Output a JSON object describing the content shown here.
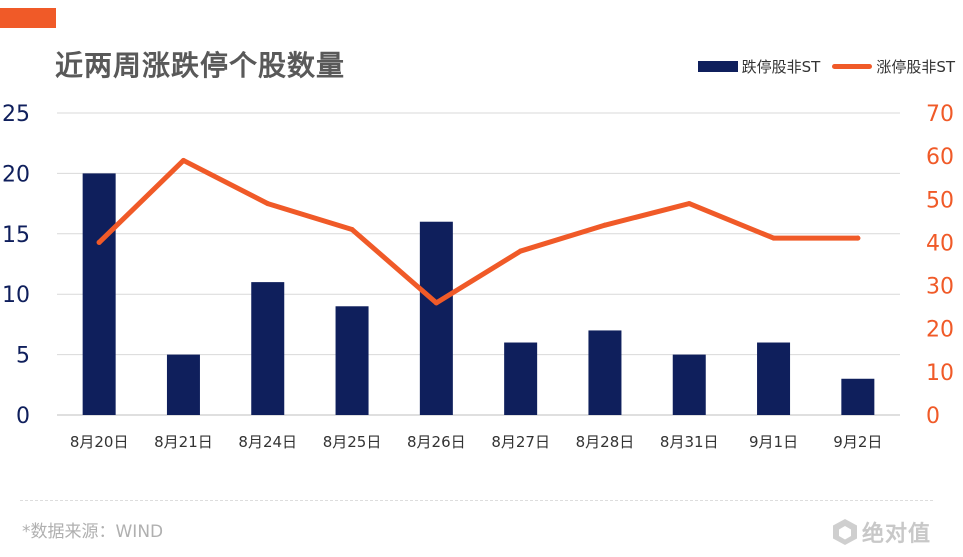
{
  "header": {
    "title": "近两周涨跌停个股数量"
  },
  "legend": {
    "bar_label": "跌停股非ST",
    "line_label": "涨停股非ST"
  },
  "footer": {
    "source": "*数据来源：WIND",
    "logo_text": "绝对值"
  },
  "colors": {
    "accent": "#f05a28",
    "bar": "#0f1f5c",
    "line": "#f05a28",
    "left_axis": "#0f1f5c",
    "right_axis": "#f05a28",
    "grid": "#d9d9d9"
  },
  "chart_data": {
    "type": "bar",
    "categories": [
      "8月20日",
      "8月21日",
      "8月24日",
      "8月25日",
      "8月26日",
      "8月27日",
      "8月28日",
      "8月31日",
      "9月1日",
      "9月2日"
    ],
    "series": [
      {
        "name": "跌停股非ST",
        "type": "bar",
        "axis": "left",
        "values": [
          20,
          5,
          11,
          9,
          16,
          6,
          7,
          5,
          6,
          3
        ]
      },
      {
        "name": "涨停股非ST",
        "type": "line",
        "axis": "right",
        "values": [
          40,
          59,
          49,
          43,
          26,
          38,
          44,
          49,
          41,
          41
        ]
      }
    ],
    "y_left": {
      "min": 0,
      "max": 25,
      "ticks": [
        "0",
        "5",
        "10",
        "15",
        "20",
        "25"
      ]
    },
    "y_right": {
      "min": 0,
      "max": 70,
      "ticks": [
        "0",
        "10",
        "20",
        "30",
        "40",
        "50",
        "60",
        "70"
      ]
    },
    "grid": true,
    "legend_position": "top-right"
  }
}
